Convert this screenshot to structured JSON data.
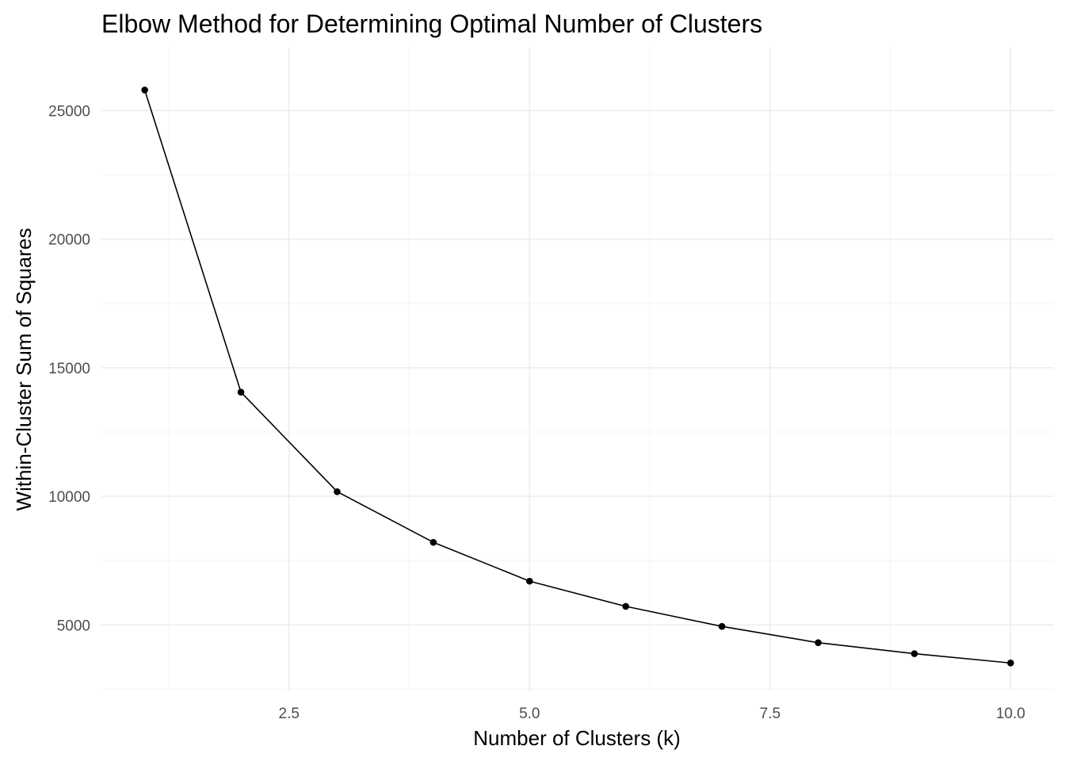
{
  "chart_data": {
    "type": "line",
    "title": "Elbow Method for Determining Optimal Number of Clusters",
    "xlabel": "Number of Clusters (k)",
    "ylabel": "Within-Cluster Sum of Squares",
    "x": [
      1,
      2,
      3,
      4,
      5,
      6,
      7,
      8,
      9,
      10
    ],
    "series": [
      {
        "values": [
          25800,
          14050,
          10180,
          8210,
          6700,
          5720,
          4940,
          4310,
          3880,
          3520
        ]
      }
    ],
    "xlim": [
      0.55,
      10.45
    ],
    "ylim": [
      2450,
      27450
    ],
    "x_ticks": [
      2.5,
      5.0,
      7.5,
      10.0
    ],
    "x_tick_labels": [
      "2.5",
      "5.0",
      "7.5",
      "10.0"
    ],
    "y_ticks": [
      5000,
      10000,
      15000,
      20000,
      25000
    ],
    "y_tick_labels": [
      "5000",
      "10000",
      "15000",
      "20000",
      "25000"
    ],
    "grid": true,
    "markers": true,
    "line_color": "#000000",
    "grid_color": "#ebebeb",
    "background": "#ffffff"
  }
}
